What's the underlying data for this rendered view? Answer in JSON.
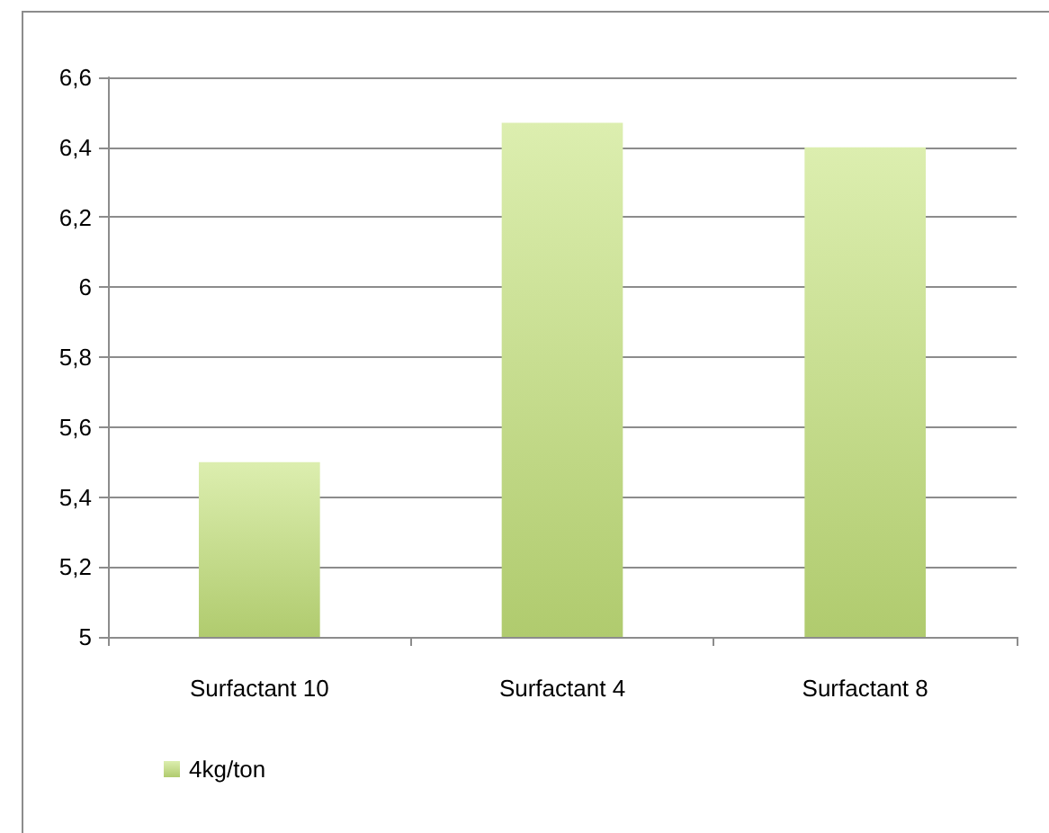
{
  "chart_data": {
    "type": "bar",
    "categories": [
      "Surfactant 10",
      "Surfactant 4",
      "Surfactant 8"
    ],
    "series": [
      {
        "name": "4kg/ton",
        "color": "#c4e27a",
        "values": [
          5.5,
          6.47,
          6.4
        ]
      }
    ],
    "ylim": [
      5,
      6.6
    ],
    "yticks": [
      5,
      {
        "value": 5.2,
        "label": "5,2"
      },
      {
        "value": 5.4,
        "label": "5,4"
      },
      {
        "value": 5.6,
        "label": "5,6"
      },
      {
        "value": 5.8,
        "label": "5,8"
      },
      6,
      {
        "value": 6.2,
        "label": "6,2"
      },
      {
        "value": 6.4,
        "label": "6,4"
      },
      {
        "value": 6.6,
        "label": "6,6"
      }
    ],
    "grid": "y",
    "legend": "bottom left"
  }
}
